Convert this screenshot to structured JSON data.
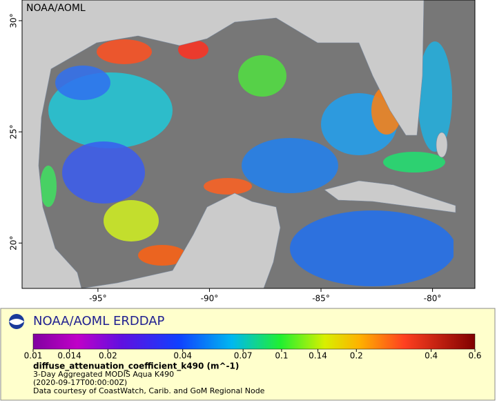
{
  "map": {
    "watermark": "NOAA/AOML",
    "xlim": [
      -98.4,
      -78.1
    ],
    "ylim": [
      17.96,
      30.93
    ],
    "xticks": [
      {
        "value": -95,
        "label": "-95°"
      },
      {
        "value": -90,
        "label": "-90°"
      },
      {
        "value": -85,
        "label": "-85°"
      },
      {
        "value": -80,
        "label": "-80°"
      }
    ],
    "yticks": [
      {
        "value": 20,
        "label": "20°"
      },
      {
        "value": 25,
        "label": "25°"
      },
      {
        "value": 30,
        "label": "30°"
      }
    ]
  },
  "legend": {
    "title": "NOAA/AOML ERDDAP",
    "colorbar": {
      "scale": "log",
      "lim": [
        0.01,
        0.6
      ],
      "ticks": [
        0.01,
        0.014,
        0.02,
        0.04,
        0.07,
        0.1,
        0.14,
        0.2,
        0.4,
        0.6
      ]
    },
    "variable": "diffuse_attenuation_coefficient_k490 (m^-1)",
    "lines": [
      "3-Day Aggregated MODIS Aqua K490",
      "(2020-09-17T00:00:00Z)",
      "Data courtesy of CoastWatch, Carib. and GoM Regional Node"
    ]
  }
}
